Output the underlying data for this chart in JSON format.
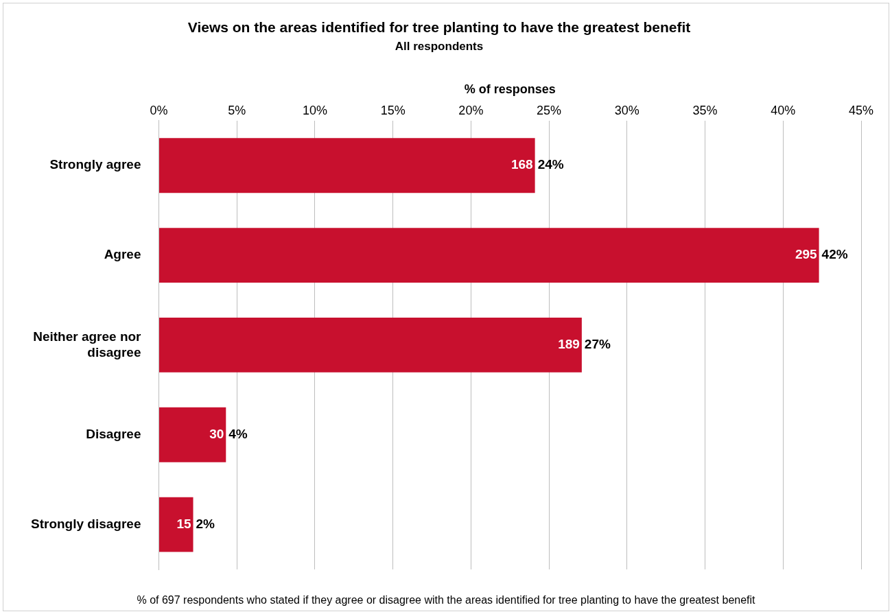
{
  "chart_data": {
    "type": "bar",
    "orientation": "horizontal",
    "title": "Views on the areas identified for tree planting to have the greatest benefit",
    "subtitle": "All respondents",
    "xlabel": "% of responses",
    "categories": [
      "Strongly agree",
      "Agree",
      "Neither agree nor disagree",
      "Disagree",
      "Strongly disagree"
    ],
    "values": [
      24.1,
      42.3,
      27.1,
      4.3,
      2.2
    ],
    "color": "#c8102e",
    "value_labels": [
      "168 24%",
      "295 42%",
      "189 27%",
      "30 4%",
      "15 2%"
    ],
    "xlim": [
      0,
      45
    ],
    "xticks": [
      {
        "value": 0,
        "label": "0%"
      },
      {
        "value": 5,
        "label": "5%"
      },
      {
        "value": 10,
        "label": "10%"
      },
      {
        "value": 15,
        "label": "15%"
      },
      {
        "value": 20,
        "label": "20%"
      },
      {
        "value": 25,
        "label": "25%"
      },
      {
        "value": 30,
        "label": "30%"
      },
      {
        "value": 35,
        "label": "35%"
      },
      {
        "value": 40,
        "label": "40%"
      },
      {
        "value": 45,
        "label": "45%"
      }
    ],
    "grid": "x",
    "legend": false,
    "annotations": [
      "% of 697 respondents who stated if they agree or disagree with the areas identified for tree planting to have the greatest benefit"
    ]
  }
}
